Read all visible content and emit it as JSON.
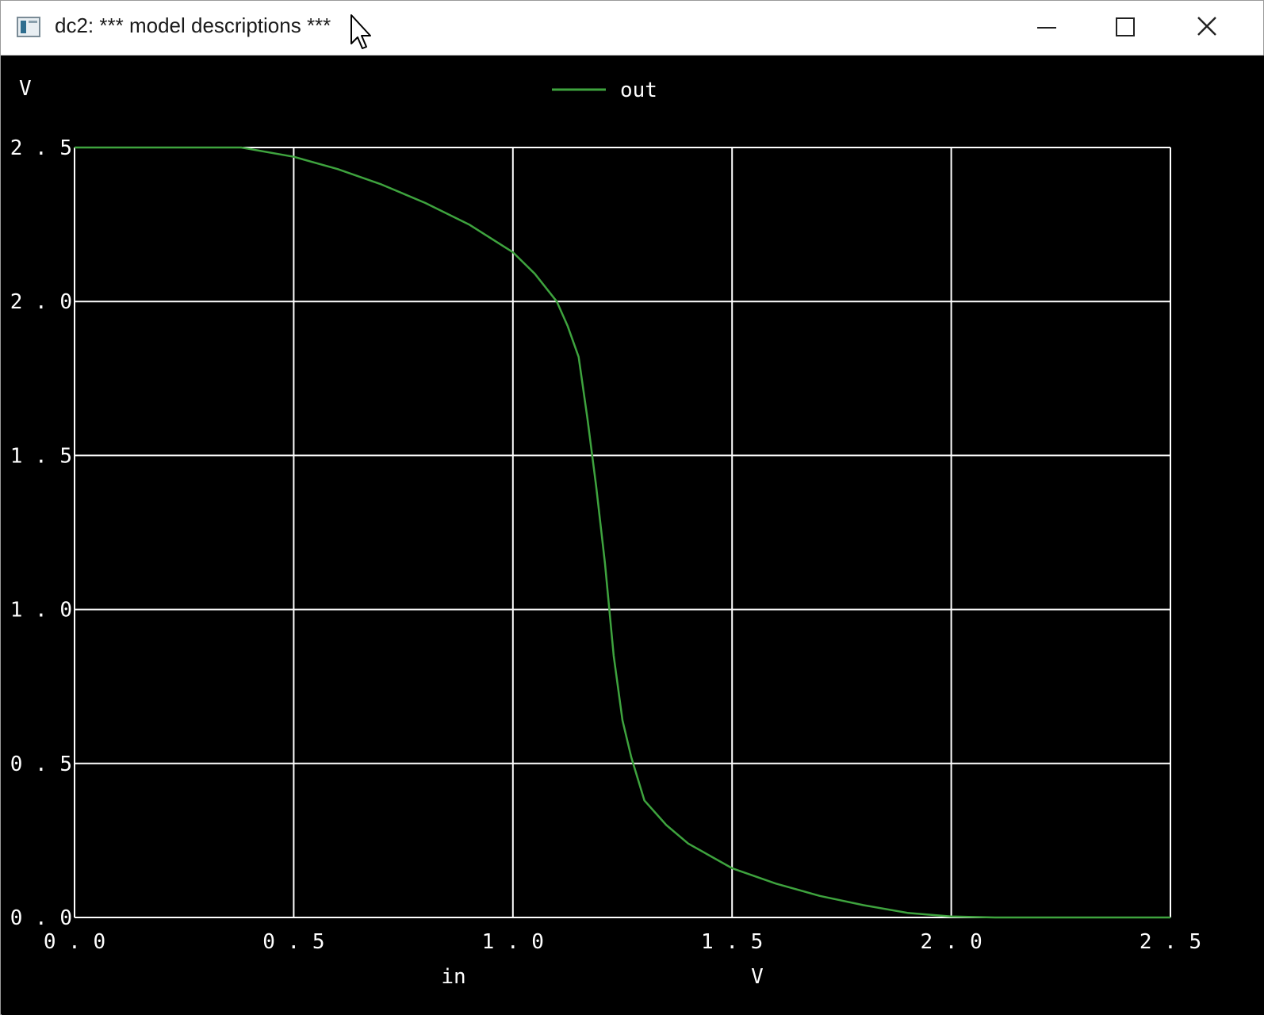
{
  "window": {
    "title": "dc2: *** model descriptions ***",
    "icons": {
      "app": "app-window-icon",
      "cursor": "mouse-pointer-icon",
      "minimize": "minimize-icon",
      "maximize": "maximize-icon",
      "close": "close-icon"
    }
  },
  "chart_data": {
    "type": "line",
    "ylabel": "V",
    "xlabel": "in",
    "xunit": "V",
    "xlim": [
      0,
      2.5
    ],
    "ylim": [
      0,
      2.5
    ],
    "xticks": [
      "0.0",
      "0.5",
      "1.0",
      "1.5",
      "2.0",
      "2.5"
    ],
    "yticks": [
      "0.0",
      "0.5",
      "1.0",
      "1.5",
      "2.0",
      "2.5"
    ],
    "grid": true,
    "legend_position": "top-center",
    "colors": {
      "background": "#000000",
      "grid": "#ffffff",
      "text": "#ffffff",
      "series": "#3ea33e"
    },
    "series": [
      {
        "name": "out",
        "x": [
          0,
          0.38,
          0.5,
          0.6,
          0.7,
          0.8,
          0.9,
          1.0,
          1.05,
          1.1,
          1.125,
          1.15,
          1.17,
          1.19,
          1.21,
          1.22,
          1.23,
          1.25,
          1.27,
          1.3,
          1.35,
          1.4,
          1.5,
          1.6,
          1.7,
          1.8,
          1.9,
          2.0,
          2.1,
          2.5
        ],
        "values": [
          2.5,
          2.5,
          2.47,
          2.43,
          2.38,
          2.32,
          2.25,
          2.16,
          2.09,
          2.0,
          1.92,
          1.82,
          1.62,
          1.4,
          1.15,
          1.0,
          0.85,
          0.64,
          0.52,
          0.38,
          0.3,
          0.24,
          0.16,
          0.11,
          0.07,
          0.04,
          0.015,
          0.003,
          0.0,
          0.0
        ]
      }
    ]
  }
}
